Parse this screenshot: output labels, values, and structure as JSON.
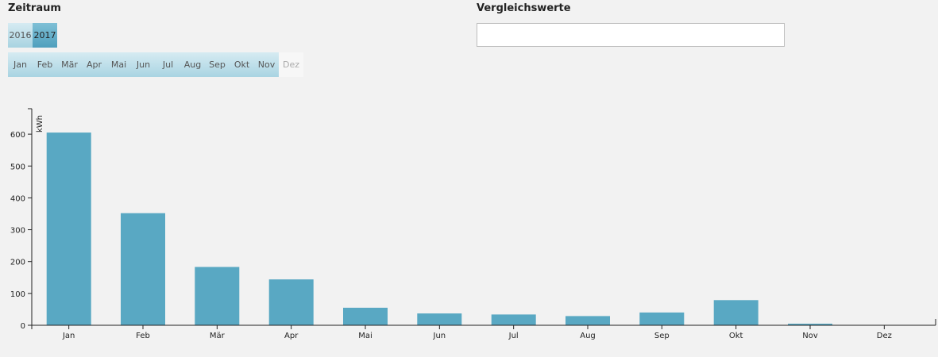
{
  "zeitraum": {
    "title": "Zeitraum",
    "years": [
      {
        "label": "2016",
        "active": false
      },
      {
        "label": "2017",
        "active": true
      }
    ],
    "months": [
      {
        "label": "Jan",
        "enabled": true
      },
      {
        "label": "Feb",
        "enabled": true
      },
      {
        "label": "Mär",
        "enabled": true
      },
      {
        "label": "Apr",
        "enabled": true
      },
      {
        "label": "Mai",
        "enabled": true
      },
      {
        "label": "Jun",
        "enabled": true
      },
      {
        "label": "Jul",
        "enabled": true
      },
      {
        "label": "Aug",
        "enabled": true
      },
      {
        "label": "Sep",
        "enabled": true
      },
      {
        "label": "Okt",
        "enabled": true
      },
      {
        "label": "Nov",
        "enabled": true
      },
      {
        "label": "Dez",
        "enabled": false
      }
    ]
  },
  "vergleichswerte": {
    "title": "Vergleichswerte",
    "value": ""
  },
  "colors": {
    "bar": "#59a8c3",
    "axis": "#222222"
  },
  "chart_data": {
    "type": "bar",
    "categories": [
      "Jan",
      "Feb",
      "Mär",
      "Apr",
      "Mai",
      "Jun",
      "Jul",
      "Aug",
      "Sep",
      "Okt",
      "Nov",
      "Dez"
    ],
    "values": [
      605,
      352,
      183,
      144,
      55,
      37,
      34,
      29,
      40,
      79,
      5,
      0
    ],
    "ylabel": "kWh",
    "ylim": [
      0,
      680
    ],
    "yticks": [
      0,
      100,
      200,
      300,
      400,
      500,
      600
    ],
    "grid": false
  }
}
